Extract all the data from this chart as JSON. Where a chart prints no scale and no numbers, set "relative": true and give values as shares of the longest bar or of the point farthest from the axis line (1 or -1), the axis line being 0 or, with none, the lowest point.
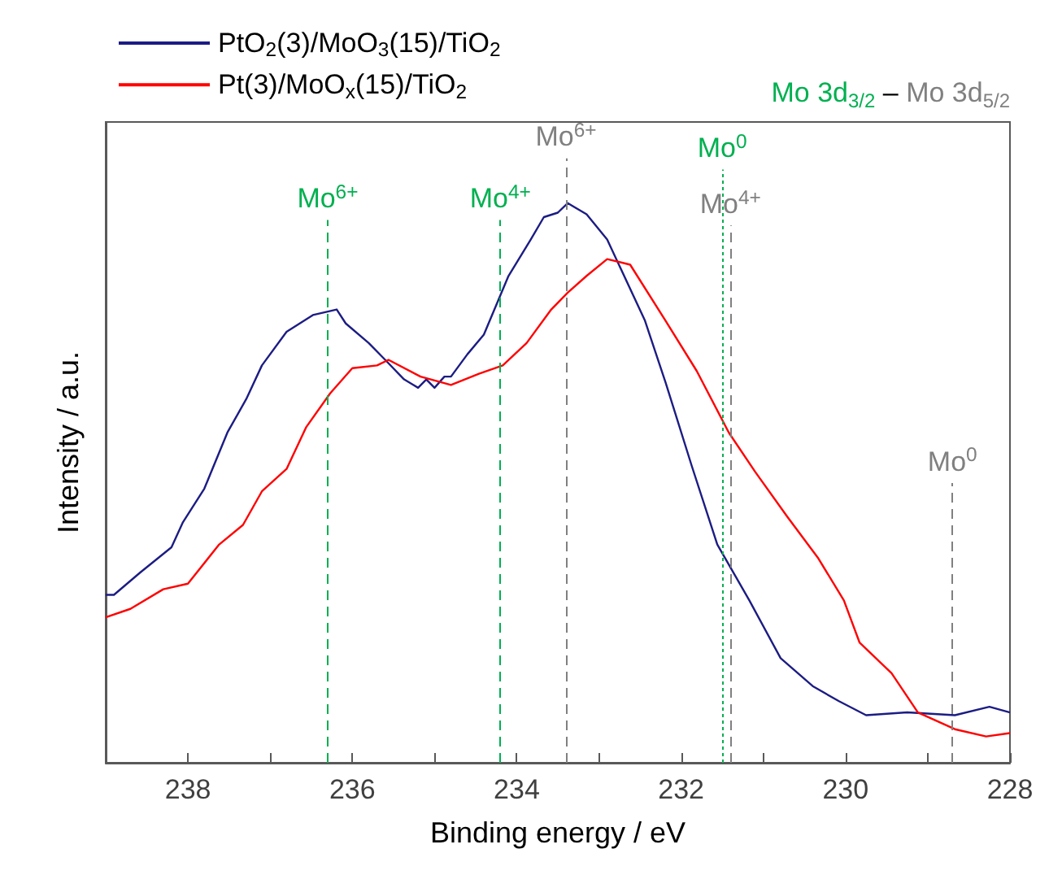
{
  "chart_data": {
    "type": "line",
    "xlabel": "Binding energy / eV",
    "ylabel": "Intensity / a.u.",
    "relative": true,
    "legend": "top left",
    "grid": false,
    "tick_labels": "x",
    "xlim": [
      239,
      228
    ],
    "xticks": [
      {
        "value": 239,
        "label": null
      },
      238,
      {
        "value": 237,
        "label": null
      },
      236,
      {
        "value": 235,
        "label": null
      },
      234,
      {
        "value": 233,
        "label": null
      },
      232,
      {
        "value": 231,
        "label": null
      },
      230,
      {
        "value": 229,
        "label": null
      },
      228
    ],
    "series": [
      {
        "name": "PtO$_{2}$(3)/MoO$_{3}$(15)/TiO$_{2}$",
        "color": "#1c1c84",
        "x": [
          239.0,
          238.9,
          238.58,
          238.2,
          238.06,
          237.8,
          237.52,
          237.29,
          237.1,
          236.8,
          236.48,
          236.19,
          236.08,
          235.8,
          235.6,
          235.37,
          235.2,
          235.1,
          235.0,
          234.88,
          234.8,
          234.6,
          234.4,
          234.1,
          233.83,
          233.67,
          233.5,
          233.38,
          233.15,
          232.9,
          232.44,
          232.19,
          231.87,
          231.56,
          231.17,
          230.79,
          230.4,
          230.08,
          229.75,
          229.25,
          228.67,
          228.25,
          228.0
        ],
        "values": [
          0.3,
          0.3,
          0.34,
          0.385,
          0.43,
          0.49,
          0.59,
          0.65,
          0.71,
          0.77,
          0.8,
          0.81,
          0.785,
          0.75,
          0.72,
          0.685,
          0.67,
          0.685,
          0.67,
          0.69,
          0.69,
          0.73,
          0.765,
          0.87,
          0.935,
          0.975,
          0.983,
          1.0,
          0.98,
          0.935,
          0.79,
          0.68,
          0.53,
          0.39,
          0.29,
          0.187,
          0.137,
          0.11,
          0.085,
          0.09,
          0.085,
          0.1,
          0.09
        ]
      },
      {
        "name": "Pt(3)/MoO$_{x}$(15)/TiO$_{2}$",
        "color": "#ff0000",
        "x": [
          239.0,
          238.7,
          238.3,
          238.0,
          237.62,
          237.33,
          237.1,
          236.8,
          236.56,
          236.27,
          236.0,
          235.7,
          235.56,
          235.17,
          234.8,
          234.46,
          234.17,
          233.88,
          233.58,
          233.38,
          233.15,
          232.9,
          232.62,
          232.19,
          231.81,
          231.42,
          231.1,
          230.71,
          230.33,
          230.02,
          229.83,
          229.44,
          229.12,
          228.67,
          228.29,
          228.0
        ],
        "values": [
          0.26,
          0.275,
          0.31,
          0.32,
          0.39,
          0.425,
          0.485,
          0.525,
          0.6,
          0.66,
          0.705,
          0.71,
          0.72,
          0.69,
          0.675,
          0.695,
          0.71,
          0.75,
          0.81,
          0.84,
          0.87,
          0.9,
          0.89,
          0.79,
          0.7,
          0.59,
          0.52,
          0.44,
          0.365,
          0.29,
          0.215,
          0.16,
          0.09,
          0.06,
          0.047,
          0.053
        ]
      }
    ],
    "ref_lines": [
      {
        "axis": "x",
        "value": 236.3,
        "label": "Mo$^{6+}$",
        "color": "#00b050",
        "line_style": "dashed"
      },
      {
        "axis": "x",
        "value": 234.2,
        "label": "Mo$^{4+}$",
        "color": "#00b050",
        "line_style": "dashed"
      },
      {
        "axis": "x",
        "value": 233.4,
        "label": "Mo$^{6+}$",
        "color": "#808080",
        "line_style": "dashed"
      },
      {
        "axis": "x",
        "value": 231.5,
        "label": "Mo$^{0}$",
        "color": "#00b050",
        "line_style": "dotted"
      },
      {
        "axis": "x",
        "value": 231.4,
        "label": "Mo$^{4+}$",
        "color": "#808080",
        "line_style": "dashed"
      },
      {
        "axis": "x",
        "value": 228.7,
        "label": "Mo$^{0}$",
        "color": "#808080",
        "line_style": "dashed"
      }
    ],
    "annotations": [
      "Mo 3d$_{3/2}$",
      "–",
      "Mo 3d$_{5/2}$"
    ]
  }
}
